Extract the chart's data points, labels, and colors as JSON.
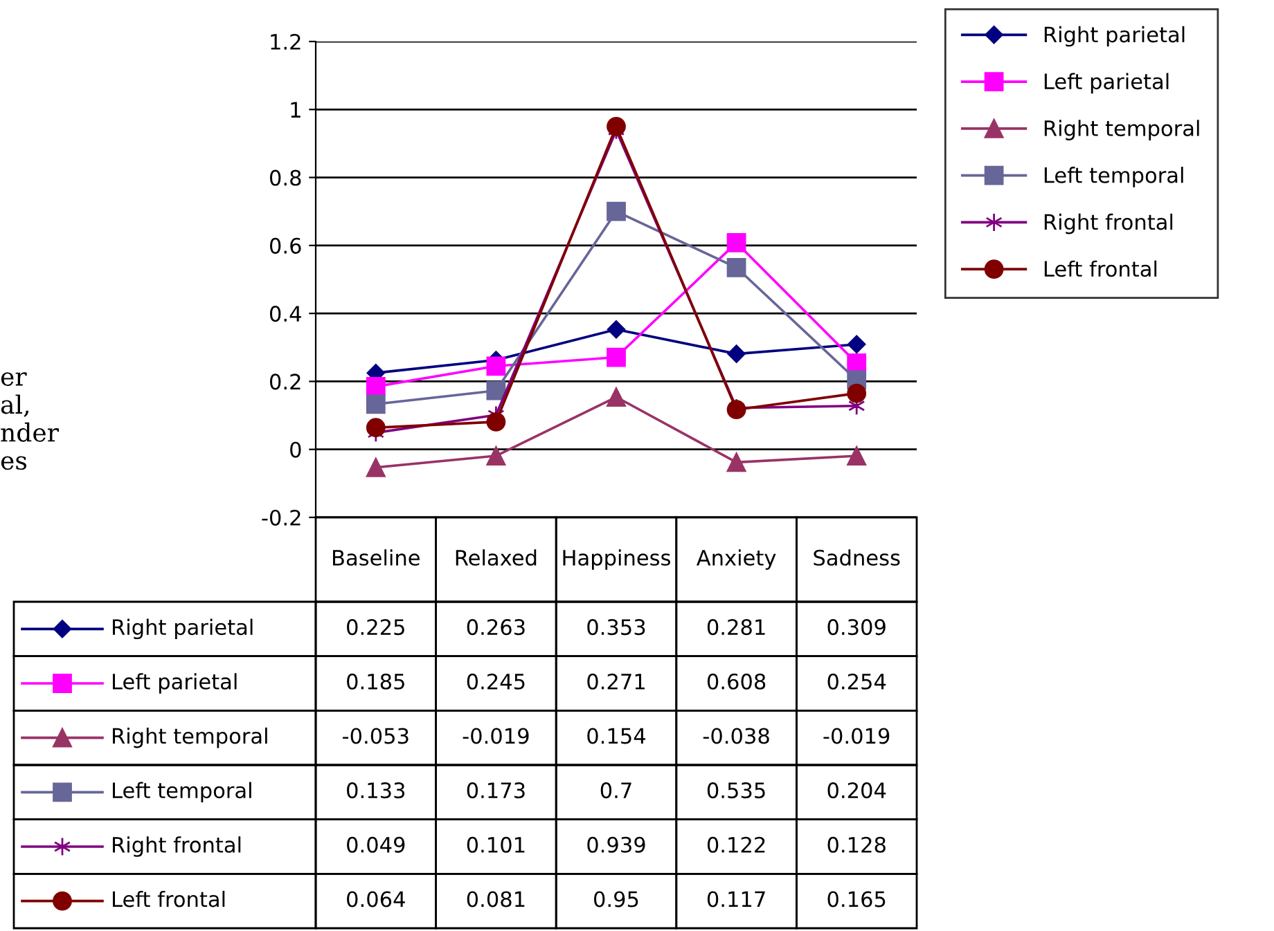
{
  "chart_data": {
    "type": "line",
    "categories": [
      "Baseline",
      "Relaxed",
      "Happiness",
      "Anxiety",
      "Sadness"
    ],
    "series": [
      {
        "name": "Right parietal",
        "color": "#000080",
        "marker": "diamond",
        "values": [
          0.225,
          0.263,
          0.353,
          0.281,
          0.309
        ]
      },
      {
        "name": "Left parietal",
        "color": "#ff00ff",
        "marker": "square",
        "values": [
          0.185,
          0.245,
          0.271,
          0.608,
          0.254
        ]
      },
      {
        "name": "Right temporal",
        "color": "#993366",
        "marker": "triangle",
        "values": [
          -0.053,
          -0.019,
          0.154,
          -0.038,
          -0.019
        ]
      },
      {
        "name": "Left temporal",
        "color": "#666699",
        "marker": "square",
        "values": [
          0.133,
          0.173,
          0.7,
          0.535,
          0.204
        ]
      },
      {
        "name": "Right frontal",
        "color": "#800080",
        "marker": "cross",
        "values": [
          0.049,
          0.101,
          0.939,
          0.122,
          0.128
        ]
      },
      {
        "name": "Left frontal",
        "color": "#800000",
        "marker": "circle",
        "values": [
          0.064,
          0.081,
          0.95,
          0.117,
          0.165
        ]
      }
    ],
    "ylim": [
      -0.2,
      1.2
    ],
    "yticks": [
      -0.2,
      0,
      0.2,
      0.4,
      0.6,
      0.8,
      1,
      1.2
    ],
    "grid": "y",
    "legend": "right",
    "data_labels": true,
    "line_style": "solid",
    "annotations": [
      "er\nal,\nnder\nes"
    ]
  }
}
